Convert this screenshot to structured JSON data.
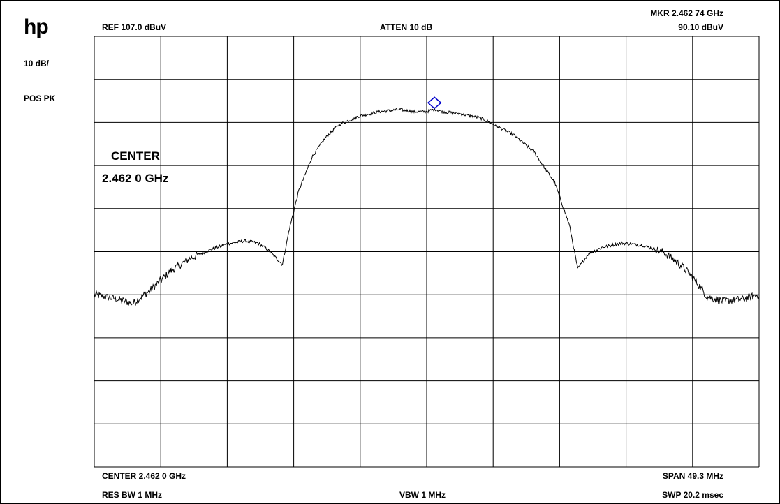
{
  "header": {
    "logo": "hp",
    "ref": "REF  107.0 dBuV",
    "atten": "ATTEN 10 dB",
    "marker_freq": "MKR 2.462 74 GHz",
    "marker_level": "90.10 dBuV"
  },
  "side": {
    "scale": "10 dB/",
    "detector": "POS PK"
  },
  "annotation": {
    "line1": "CENTER",
    "line2": "2.462 0 GHz"
  },
  "footer": {
    "center": "CENTER 2.462 0 GHz",
    "span": "SPAN 49.3 MHz",
    "rbw": "RES BW 1 MHz",
    "vbw": "VBW 1 MHz",
    "sweep": "SWP 20.2 msec"
  },
  "colors": {
    "trace": "#000000",
    "grid": "#000000",
    "marker": "#0000cc"
  },
  "chart_data": {
    "type": "line",
    "title": "",
    "xlabel": "",
    "ylabel": "",
    "x_unit": "MHz offset from center",
    "x_range": [
      -24.65,
      24.65
    ],
    "y_unit": "dBuV",
    "y_range": [
      7.0,
      107.0
    ],
    "grid": true,
    "grid_divisions": {
      "x": 10,
      "y": 10
    },
    "series": [
      {
        "x": [
          -24.65,
          -23.0,
          -21.8,
          -20.5,
          -19.0,
          -17.5,
          -16.0,
          -14.8,
          -13.5,
          -12.5,
          -11.8,
          -11.0,
          -10.7,
          -10.2,
          -9.5,
          -8.5,
          -7.5,
          -6.5,
          -5.0,
          -3.5,
          -2.0,
          -1.0,
          0.0,
          0.6,
          1.2,
          2.5,
          4.0,
          5.0,
          6.5,
          8.0,
          9.5,
          10.6,
          11.2,
          12.0,
          13.0,
          14.5,
          16.0,
          17.5,
          19.0,
          20.0,
          20.8,
          22.0,
          23.5,
          24.65
        ],
        "values": [
          47.0,
          46.0,
          45.0,
          48.0,
          52.5,
          55.5,
          57.5,
          58.8,
          59.5,
          59.0,
          57.5,
          55.0,
          54.0,
          62.0,
          71.0,
          79.0,
          83.5,
          86.5,
          88.5,
          89.5,
          90.0,
          89.5,
          89.5,
          90.1,
          89.5,
          89.0,
          88.0,
          86.5,
          84.0,
          80.0,
          73.0,
          63.0,
          53.0,
          56.5,
          58.0,
          59.0,
          58.5,
          57.0,
          53.5,
          50.0,
          46.5,
          45.5,
          46.0,
          47.0
        ]
      }
    ],
    "marker": {
      "x": 0.58,
      "y": 90.1
    }
  }
}
